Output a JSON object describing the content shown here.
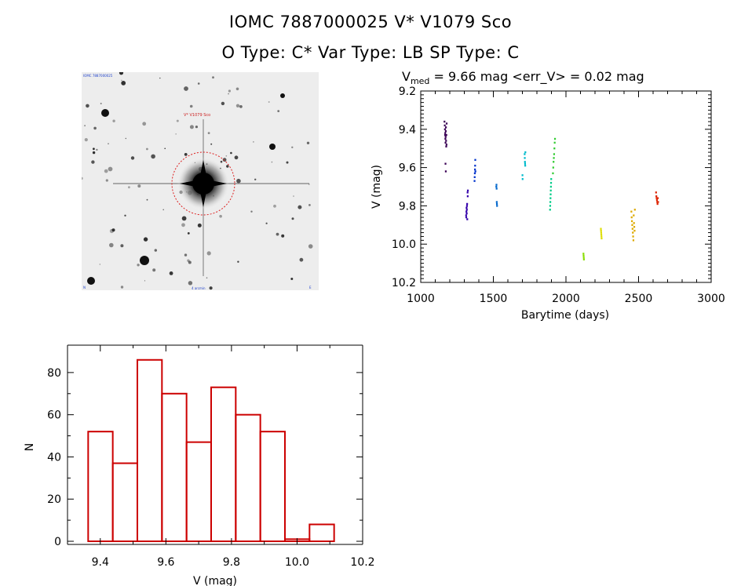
{
  "header": {
    "line1": "IOMC 7887000025    V* V1079 Sco",
    "line2": "O Type: C*   Var Type: LB   SP Type: C"
  },
  "image": {
    "label_top_left": "IOMC 7887000025",
    "label_target": "V* V1079 Sco",
    "label_bottom": "4 arcmin",
    "label_bottom_left": "N",
    "label_bottom_right": "E"
  },
  "colors": {
    "histogram": "#cc0000",
    "circle": "#dd2222",
    "axis": "#000000"
  },
  "chart_data": [
    {
      "type": "scatter",
      "title": {
        "prefix": "V",
        "subscript": "med",
        "rest": " = 9.66 mag <err_V> = 0.02 mag"
      },
      "xlabel": "Barytime (days)",
      "ylabel": "V (mag)",
      "xlim": [
        1000,
        3000
      ],
      "ylim": [
        9.2,
        10.2
      ],
      "y_inverted": true,
      "xticks": [
        1000,
        1500,
        2000,
        2500,
        3000
      ],
      "yticks": [
        9.2,
        9.4,
        9.6,
        9.8,
        10.0,
        10.2
      ],
      "series": [
        {
          "color": "#3a0055",
          "points": [
            [
              1163,
              9.36
            ],
            [
              1165,
              9.38
            ],
            [
              1166,
              9.4
            ],
            [
              1167,
              9.43
            ],
            [
              1168,
              9.42
            ],
            [
              1169,
              9.45
            ],
            [
              1170,
              9.47
            ],
            [
              1171,
              9.44
            ],
            [
              1172,
              9.41
            ],
            [
              1173,
              9.39
            ],
            [
              1174,
              9.46
            ],
            [
              1175,
              9.49
            ],
            [
              1176,
              9.43
            ],
            [
              1177,
              9.48
            ],
            [
              1178,
              9.37
            ],
            [
              1170,
              9.58
            ],
            [
              1172,
              9.62
            ]
          ]
        },
        {
          "color": "#3300aa",
          "points": [
            [
              1312,
              9.85
            ],
            [
              1313,
              9.86
            ],
            [
              1314,
              9.83
            ],
            [
              1315,
              9.81
            ],
            [
              1316,
              9.84
            ],
            [
              1317,
              9.82
            ],
            [
              1318,
              9.8
            ],
            [
              1319,
              9.79
            ],
            [
              1320,
              9.87
            ],
            [
              1322,
              9.73
            ],
            [
              1323,
              9.75
            ],
            [
              1324,
              9.72
            ]
          ]
        },
        {
          "color": "#0033cc",
          "points": [
            [
              1370,
              9.67
            ],
            [
              1371,
              9.65
            ],
            [
              1372,
              9.63
            ],
            [
              1373,
              9.61
            ],
            [
              1374,
              9.59
            ],
            [
              1375,
              9.56
            ],
            [
              1376,
              9.62
            ]
          ]
        },
        {
          "color": "#0066cc",
          "points": [
            [
              1520,
              9.7
            ],
            [
              1521,
              9.69
            ],
            [
              1522,
              9.71
            ],
            [
              1523,
              9.78
            ],
            [
              1524,
              9.79
            ],
            [
              1525,
              9.8
            ]
          ]
        },
        {
          "color": "#00bbcc",
          "points": [
            [
              1700,
              9.64
            ],
            [
              1701,
              9.66
            ],
            [
              1715,
              9.53
            ],
            [
              1716,
              9.55
            ],
            [
              1717,
              9.57
            ],
            [
              1718,
              9.58
            ],
            [
              1719,
              9.59
            ],
            [
              1720,
              9.52
            ]
          ]
        },
        {
          "color": "#00cc88",
          "points": [
            [
              1890,
              9.82
            ],
            [
              1891,
              9.8
            ],
            [
              1892,
              9.78
            ],
            [
              1893,
              9.76
            ],
            [
              1894,
              9.74
            ],
            [
              1895,
              9.72
            ],
            [
              1896,
              9.7
            ],
            [
              1897,
              9.68
            ],
            [
              1898,
              9.66
            ]
          ]
        },
        {
          "color": "#33cc33",
          "points": [
            [
              1910,
              9.63
            ],
            [
              1912,
              9.6
            ],
            [
              1914,
              9.57
            ],
            [
              1916,
              9.55
            ],
            [
              1918,
              9.53
            ],
            [
              1920,
              9.5
            ],
            [
              1922,
              9.47
            ],
            [
              1924,
              9.45
            ]
          ]
        },
        {
          "color": "#88dd00",
          "points": [
            [
              2120,
              10.05
            ],
            [
              2121,
              10.06
            ],
            [
              2122,
              10.07
            ],
            [
              2123,
              10.08
            ]
          ]
        },
        {
          "color": "#dddd00",
          "points": [
            [
              2240,
              9.92
            ],
            [
              2241,
              9.93
            ],
            [
              2242,
              9.94
            ],
            [
              2243,
              9.95
            ],
            [
              2244,
              9.96
            ],
            [
              2245,
              9.97
            ]
          ]
        },
        {
          "color": "#ddaa00",
          "points": [
            [
              2450,
              9.83
            ],
            [
              2452,
              9.86
            ],
            [
              2454,
              9.88
            ],
            [
              2456,
              9.9
            ],
            [
              2458,
              9.92
            ],
            [
              2460,
              9.94
            ],
            [
              2462,
              9.96
            ],
            [
              2464,
              9.98
            ],
            [
              2466,
              9.85
            ],
            [
              2468,
              9.89
            ],
            [
              2470,
              9.91
            ],
            [
              2472,
              9.93
            ],
            [
              2474,
              9.82
            ]
          ]
        },
        {
          "color": "#dd2200",
          "points": [
            [
              2620,
              9.73
            ],
            [
              2622,
              9.75
            ],
            [
              2624,
              9.76
            ],
            [
              2626,
              9.77
            ],
            [
              2628,
              9.78
            ],
            [
              2630,
              9.79
            ],
            [
              2632,
              9.76
            ],
            [
              2634,
              9.78
            ]
          ]
        }
      ]
    },
    {
      "type": "bar",
      "xlabel": "V (mag)",
      "ylabel": "N",
      "xlim": [
        9.3,
        10.2
      ],
      "ylim": [
        0,
        90
      ],
      "xticks": [
        9.4,
        9.6,
        9.8,
        10.0,
        10.2
      ],
      "xtick_labels": [
        "9.4",
        "9.6",
        "9.8",
        "10.0",
        "10.2"
      ],
      "yticks": [
        0,
        20,
        40,
        60,
        80
      ],
      "bin_width": 0.075,
      "bins": [
        {
          "start": 9.363,
          "value": 52
        },
        {
          "start": 9.438,
          "value": 37
        },
        {
          "start": 9.513,
          "value": 86
        },
        {
          "start": 9.588,
          "value": 70
        },
        {
          "start": 9.663,
          "value": 47
        },
        {
          "start": 9.738,
          "value": 73
        },
        {
          "start": 9.813,
          "value": 60
        },
        {
          "start": 9.888,
          "value": 52
        },
        {
          "start": 9.963,
          "value": 1
        },
        {
          "start": 10.038,
          "value": 8
        }
      ]
    }
  ]
}
